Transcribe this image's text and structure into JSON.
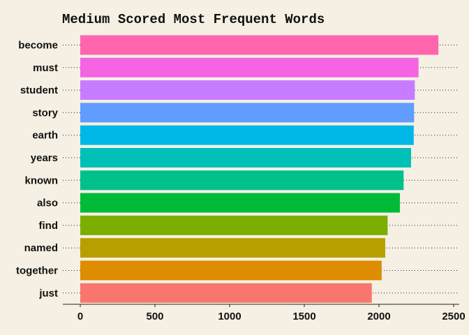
{
  "chart_data": {
    "type": "bar",
    "orientation": "horizontal",
    "title": "Medium Scored Most Frequent Words",
    "xlabel": "",
    "ylabel": "",
    "xlim": [
      0,
      2500
    ],
    "xticks": [
      0,
      500,
      1000,
      1500,
      2000,
      2500
    ],
    "xtick_labels": [
      "0",
      "500",
      "1000",
      "1500",
      "2000",
      "2500"
    ],
    "grid": "dotted horizontal lines at each category",
    "legend": "none",
    "categories": [
      "become",
      "must",
      "student",
      "story",
      "earth",
      "years",
      "known",
      "also",
      "find",
      "named",
      "together",
      "just"
    ],
    "values": [
      2398,
      2265,
      2240,
      2235,
      2233,
      2215,
      2165,
      2140,
      2058,
      2042,
      2018,
      1952
    ],
    "colors": [
      "#ff65ae",
      "#f564e3",
      "#c77cff",
      "#619cff",
      "#00b8e7",
      "#00c0b8",
      "#00c08b",
      "#00ba38",
      "#7cae00",
      "#b79f00",
      "#de8c00",
      "#f8766d"
    ]
  }
}
